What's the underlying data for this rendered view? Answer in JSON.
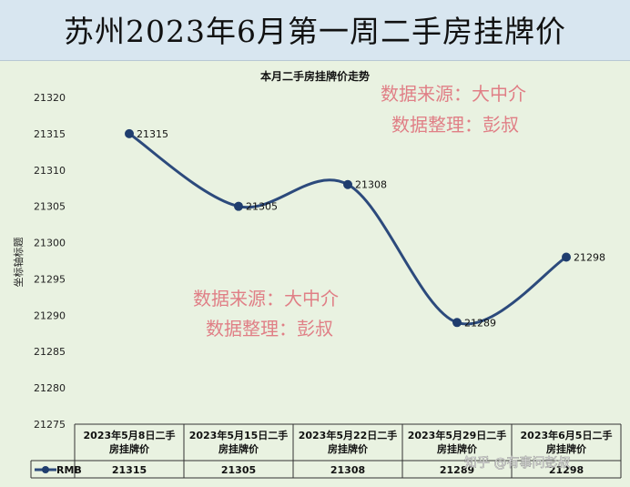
{
  "banner_title": "苏州2023年6月第一周二手房挂牌价",
  "watermarks": {
    "source_line": "数据来源：大中介",
    "editor_line": "数据整理：彭叔",
    "platform": "知乎 @有事问彭叔"
  },
  "colors": {
    "line": "#2c4a7c",
    "marker": "#1f3d6e",
    "watermark": "#e07f86",
    "banner_bg": "#d8e6f0",
    "plot_bg": "#e9f2e1"
  },
  "chart_data": {
    "type": "line",
    "title": "本月二手房挂牌价走势",
    "ylabel": "坐标轴标题",
    "categories": [
      "2023年5月8日二手房挂牌价",
      "2023年5月15日二手房挂牌价",
      "2023年5月22日二手房挂牌价",
      "2023年5月29日二手房挂牌价",
      "2023年6月5日二手房挂牌价"
    ],
    "category_lines": [
      [
        "2023年5月8日二手",
        "房挂牌价"
      ],
      [
        "2023年5月15日二手",
        "房挂牌价"
      ],
      [
        "2023年5月22日二手",
        "房挂牌价"
      ],
      [
        "2023年5月29日二手",
        "房挂牌价"
      ],
      [
        "2023年6月5日二手",
        "房挂牌价"
      ]
    ],
    "series": [
      {
        "name": "RMB",
        "values": [
          21315,
          21305,
          21308,
          21289,
          21298
        ]
      }
    ],
    "ylim": [
      21275,
      21320
    ],
    "yticks": [
      21320,
      21315,
      21310,
      21305,
      21300,
      21295,
      21290,
      21285,
      21280,
      21275
    ],
    "smooth": true,
    "data_table": true,
    "grid": false
  }
}
